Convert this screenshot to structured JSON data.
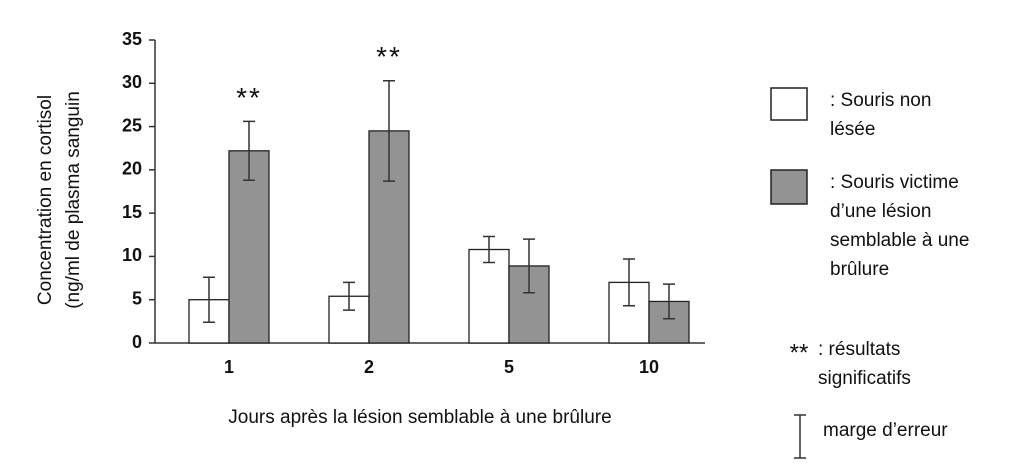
{
  "chart_data": {
    "type": "bar",
    "y_label": [
      "Concentration en cortisol",
      "(ng/ml de plasma sanguin"
    ],
    "x_label": "Jours après la lésion semblable à une brûlure",
    "categories": [
      "1",
      "2",
      "5",
      "10"
    ],
    "series": [
      {
        "name": ": Souris non lésée",
        "color": "#ffffff",
        "values": [
          5,
          5.4,
          10.8,
          7
        ],
        "errors": [
          2.6,
          1.6,
          1.5,
          2.7
        ]
      },
      {
        "name": ": Souris victime d’une lésion semblable à une brûlure",
        "color": "#939393",
        "values": [
          22.2,
          24.5,
          8.9,
          4.8
        ],
        "errors": [
          3.4,
          5.8,
          3.1,
          2
        ]
      }
    ],
    "significance_labels": [
      "**",
      "**",
      null,
      null
    ],
    "significance_legend": {
      "symbol": "**",
      "text": ": résultats significatifs"
    },
    "error_bar_legend": "marge d’erreur",
    "ylim": [
      0,
      35
    ],
    "yticks": [
      0,
      5,
      10,
      15,
      20,
      25,
      30,
      35
    ],
    "grid": false
  }
}
